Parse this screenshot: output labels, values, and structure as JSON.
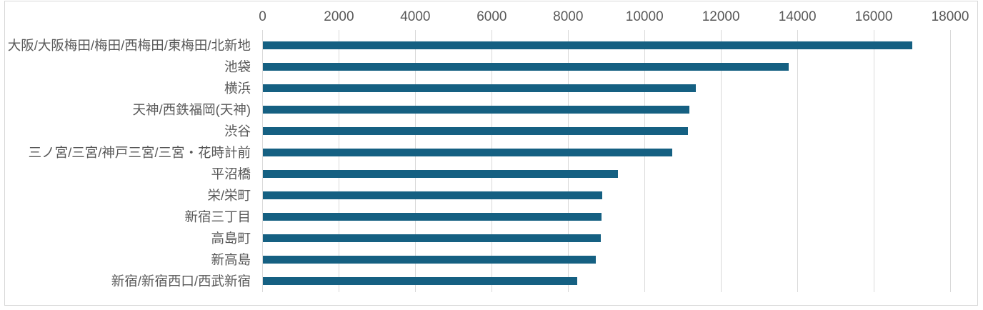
{
  "chart_data": {
    "type": "bar",
    "orientation": "horizontal",
    "title": "",
    "xlabel": "",
    "ylabel": "",
    "categories": [
      "大阪/大阪梅田/梅田/西梅田/東梅田/北新地",
      "池袋",
      "横浜",
      "天神/西鉄福岡(天神)",
      "渋谷",
      "三ノ宮/三宮/神戸三宮/三宮・花時計前",
      "平沼橋",
      "栄/栄町",
      "新宿三丁目",
      "高島町",
      "新高島",
      "新宿/新宿西口/西武新宿"
    ],
    "values": [
      17000,
      13760,
      11340,
      11160,
      11120,
      10710,
      9300,
      8890,
      8860,
      8840,
      8720,
      8220
    ],
    "x_ticks": [
      0,
      2000,
      4000,
      6000,
      8000,
      10000,
      12000,
      14000,
      16000,
      18000
    ],
    "xlim": [
      0,
      18000
    ],
    "value_axis_position": "top",
    "grid": true,
    "legend": false,
    "colors": {
      "bar": "#156082",
      "gridline": "#d9d9d9",
      "axis_text": "#595959",
      "frame_border": "#d7d7d7",
      "background": "#ffffff"
    }
  }
}
